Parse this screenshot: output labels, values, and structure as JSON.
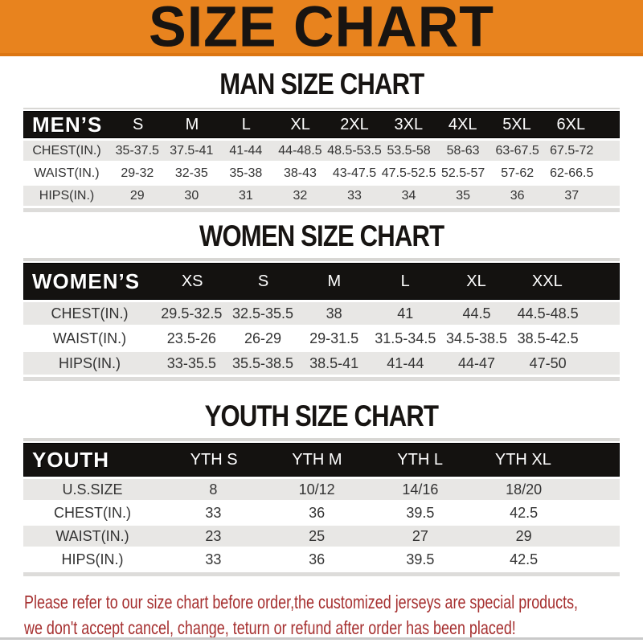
{
  "banner": {
    "title": "SIZE CHART"
  },
  "men": {
    "heading": "MAN SIZE CHART",
    "label": "MEN’S",
    "sizes": [
      "S",
      "M",
      "L",
      "XL",
      "2XL",
      "3XL",
      "4XL",
      "5XL",
      "6XL"
    ],
    "rows": [
      {
        "label": "CHEST(IN.)",
        "values": [
          "35-37.5",
          "37.5-41",
          "41-44",
          "44-48.5",
          "48.5-53.5",
          "53.5-58",
          "58-63",
          "63-67.5",
          "67.5-72"
        ]
      },
      {
        "label": "WAIST(IN.)",
        "values": [
          "29-32",
          "32-35",
          "35-38",
          "38-43",
          "43-47.5",
          "47.5-52.5",
          "52.5-57",
          "57-62",
          "62-66.5"
        ]
      },
      {
        "label": "HIPS(IN.)",
        "values": [
          "29",
          "30",
          "31",
          "32",
          "33",
          "34",
          "35",
          "36",
          "37"
        ]
      }
    ]
  },
  "women": {
    "heading": "WOMEN SIZE CHART",
    "label": "WOMEN’S",
    "sizes": [
      "XS",
      "S",
      "M",
      "L",
      "XL",
      "XXL"
    ],
    "rows": [
      {
        "label": "CHEST(IN.)",
        "values": [
          "29.5-32.5",
          "32.5-35.5",
          "38",
          "41",
          "44.5",
          "44.5-48.5"
        ]
      },
      {
        "label": "WAIST(IN.)",
        "values": [
          "23.5-26",
          "26-29",
          "29-31.5",
          "31.5-34.5",
          "34.5-38.5",
          "38.5-42.5"
        ]
      },
      {
        "label": "HIPS(IN.)",
        "values": [
          "33-35.5",
          "35.5-38.5",
          "38.5-41",
          "41-44",
          "44-47",
          "47-50"
        ]
      }
    ]
  },
  "youth": {
    "heading": "YOUTH SIZE CHART",
    "label": "YOUTH",
    "sizes": [
      "YTH S",
      "YTH M",
      "YTH L",
      "YTH XL"
    ],
    "rows": [
      {
        "label": "U.S.SIZE",
        "values": [
          "8",
          "10/12",
          "14/16",
          "18/20"
        ]
      },
      {
        "label": "CHEST(IN.)",
        "values": [
          "33",
          "36",
          "39.5",
          "42.5"
        ]
      },
      {
        "label": "WAIST(IN.)",
        "values": [
          "23",
          "25",
          "27",
          "29"
        ]
      },
      {
        "label": "HIPS(IN.)",
        "values": [
          "33",
          "36",
          "39.5",
          "42.5"
        ]
      }
    ]
  },
  "note": {
    "line1": "Please refer to our size chart before order,the customized jerseys are special products,",
    "line2": "we don't accept cancel, change, teturn or refund after order has been placed!"
  },
  "colors": {
    "banner_bg": "#E8831E",
    "bar_bg": "#141210",
    "row_alt_bg": "#E8E7E5",
    "note_red": "#A63030"
  }
}
